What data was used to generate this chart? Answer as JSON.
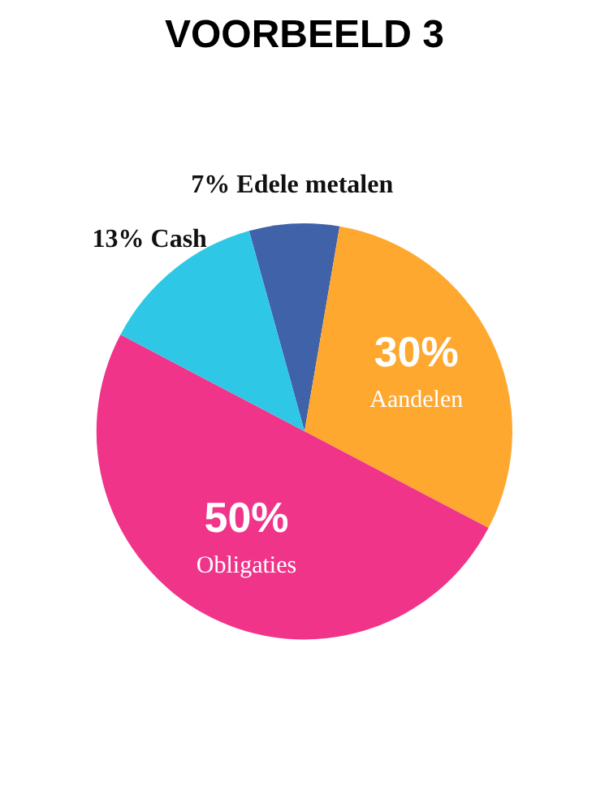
{
  "chart_data": {
    "type": "pie",
    "title": "VOORBEELD 3",
    "categories": [
      "Edele metalen",
      "Aandelen",
      "Obligaties",
      "Cash"
    ],
    "values": [
      7,
      30,
      50,
      13
    ],
    "colors": [
      "#3f62a8",
      "#ffa830",
      "#f0348a",
      "#2ec8e6"
    ],
    "value_labels": [
      "7%",
      "30%",
      "50%",
      "13%"
    ],
    "legend": false
  }
}
